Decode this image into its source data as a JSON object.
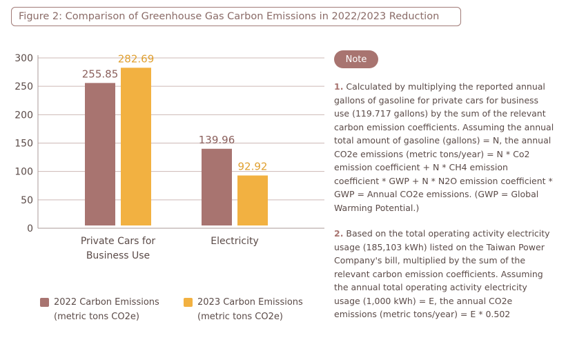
{
  "title": "Figure 2: Comparison of Greenhouse Gas Carbon Emissions in 2022/2023 Reduction",
  "colors": {
    "series_2022": "#a87470",
    "series_2023": "#f2b141",
    "label_2022": "#8a5f5b",
    "label_2023": "#e0a030",
    "axis": "#a89a97",
    "grid": "#cdb8b5",
    "text": "#5a4a47"
  },
  "chart_data": {
    "type": "bar",
    "categories": [
      "Private Cars for\nBusiness Use",
      "Electricity"
    ],
    "series": [
      {
        "name": "2022 Carbon Emissions\n(metric tons CO2e)",
        "values": [
          255.85,
          139.96
        ]
      },
      {
        "name": "2023 Carbon Emissions\n(metric tons CO2e)",
        "values": [
          282.69,
          92.92
        ]
      }
    ],
    "value_labels": [
      [
        "255.85",
        "139.96"
      ],
      [
        "282.69",
        "92.92"
      ]
    ],
    "yticks": [
      0,
      50,
      100,
      150,
      200,
      250,
      300
    ],
    "ylim": [
      0,
      300
    ],
    "grid": true,
    "legend_position": "bottom"
  },
  "legend": [
    {
      "line1": "2022 Carbon Emissions",
      "line2": "(metric tons CO2e)"
    },
    {
      "line1": "2023 Carbon Emissions",
      "line2": "(metric tons CO2e)"
    }
  ],
  "note": {
    "badge": "Note",
    "items": [
      {
        "num": "1.",
        "text": " Calculated by multiplying the reported annual gallons of gasoline for private cars for business use (119.717 gallons) by the sum of the relevant carbon emission coefficients. Assuming the annual total amount of gasoline (gallons) = N, the annual CO2e emissions (metric tons/year) = N * Co2 emission coefficient + N * CH4 emission coefficient * GWP + N * N2O emission coefficient * GWP = Annual CO2e emissions. (GWP = Global Warming Potential.)"
      },
      {
        "num": "2.",
        "text": " Based on the total operating activity electricity usage (185,103 kWh) listed on the Taiwan Power Company's bill, multiplied by the sum of the relevant carbon emission coefficients. Assuming the annual total operating activity electricity usage (1,000 kWh) = E, the annual CO2e emissions (metric tons/year) = E * 0.502"
      }
    ]
  }
}
